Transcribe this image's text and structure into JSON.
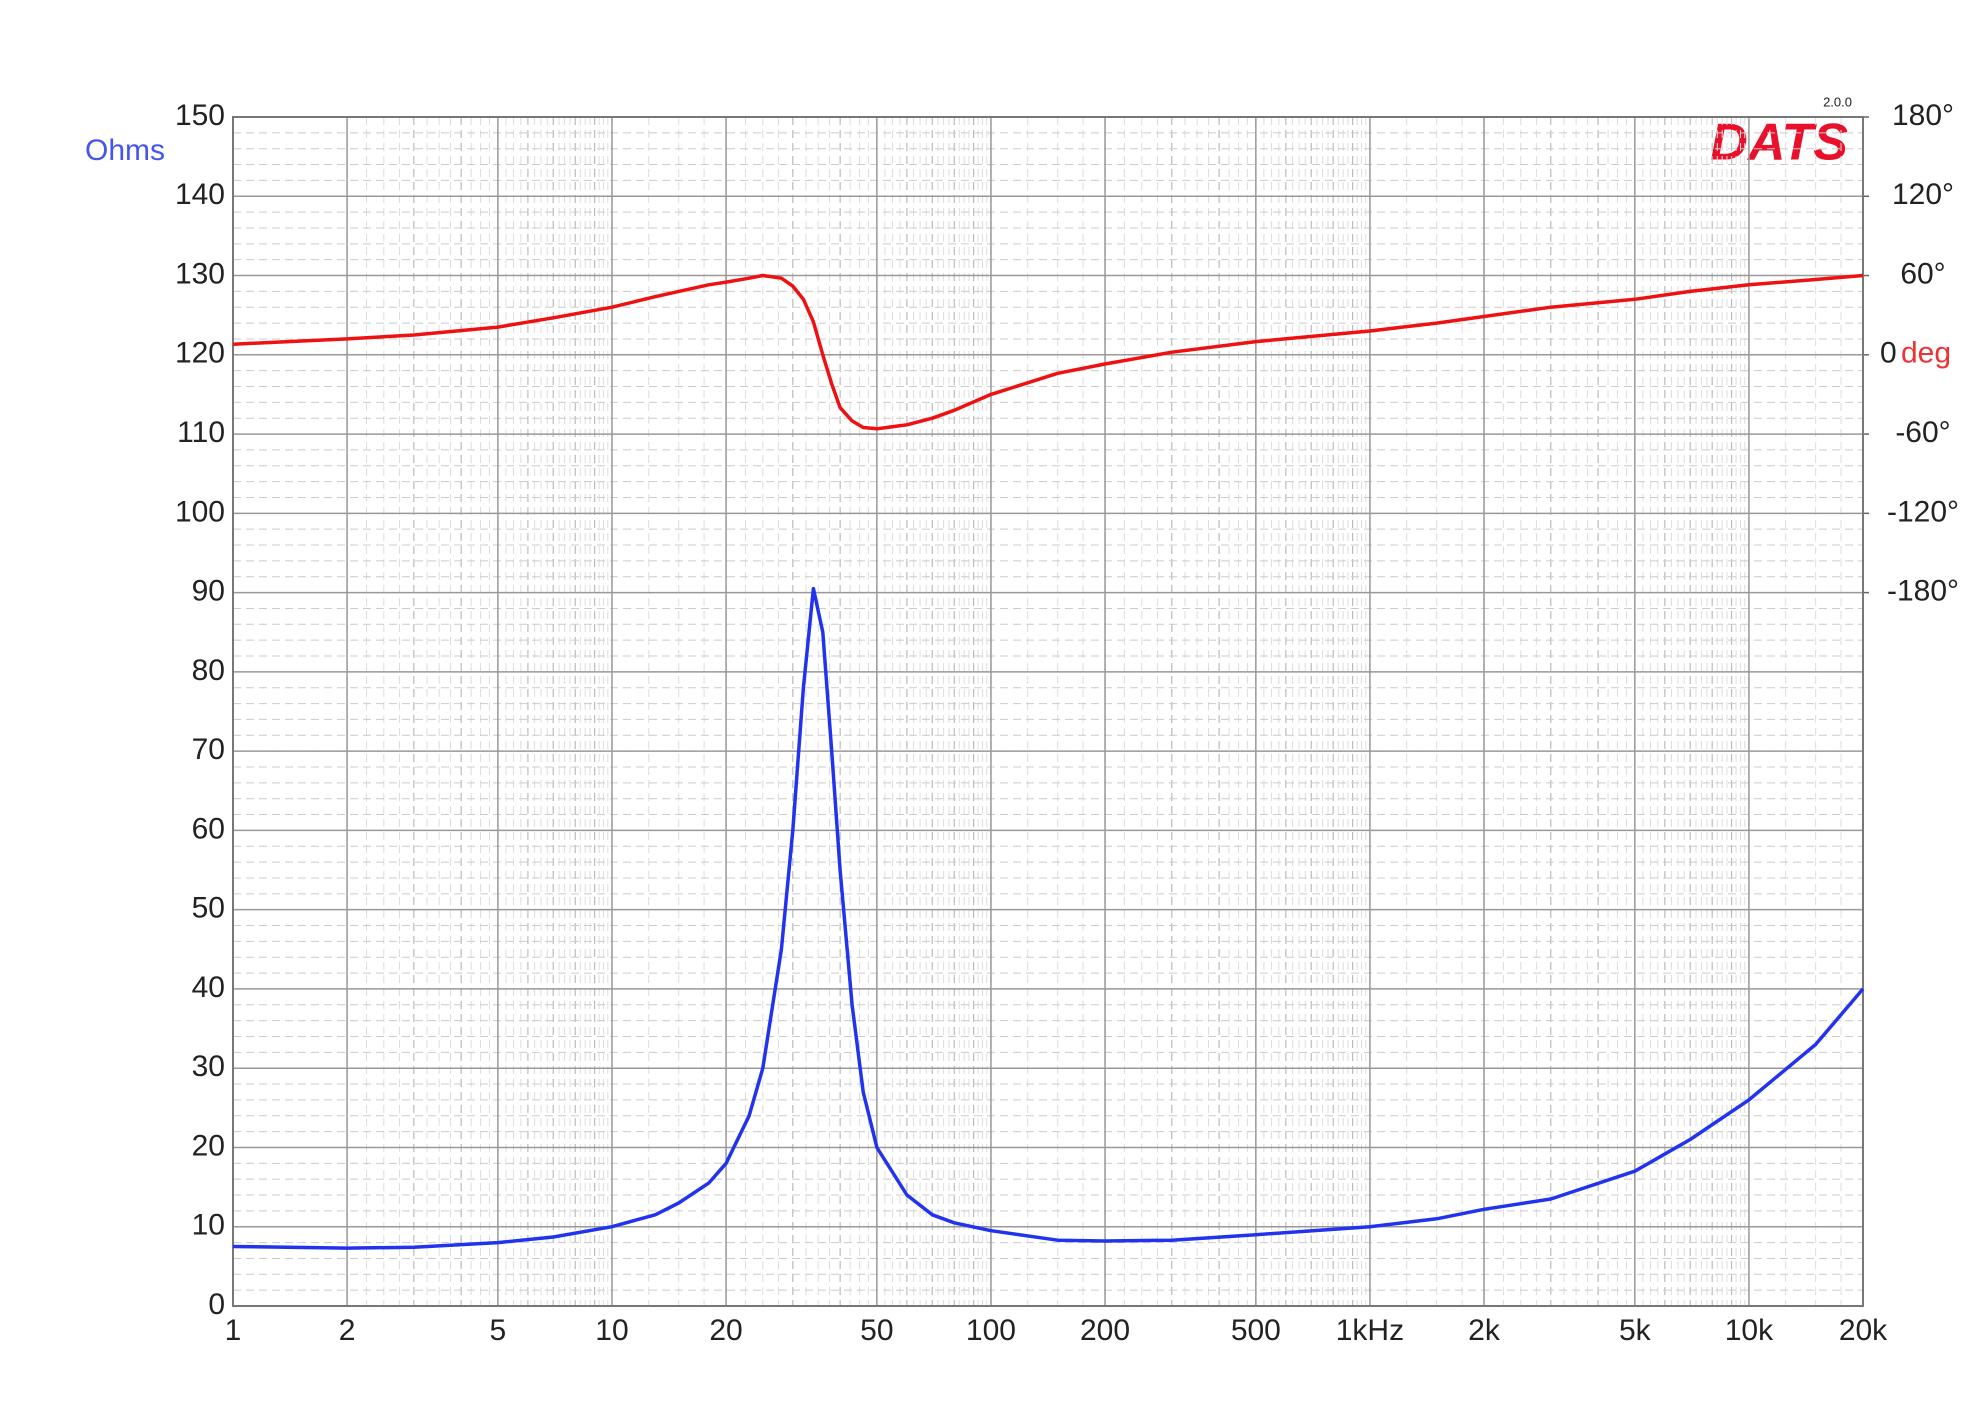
{
  "chart_data": {
    "type": "line",
    "title": "DATS",
    "version": "2.0.0",
    "y_label": "Ohms",
    "y2_label": "deg",
    "x_scale": "log",
    "grid": true,
    "x": [
      1,
      2,
      3,
      5,
      7,
      10,
      13,
      15,
      18,
      20,
      23,
      25,
      28,
      30,
      32,
      34,
      36,
      38,
      40,
      43,
      46,
      50,
      60,
      70,
      80,
      100,
      150,
      200,
      300,
      500,
      1000,
      1500,
      2000,
      3000,
      5000,
      7000,
      10000,
      15000,
      20000
    ],
    "series": [
      {
        "name": "Impedance",
        "color": "#2233ee",
        "axis": "y",
        "values": [
          7.5,
          7.3,
          7.4,
          8,
          8.7,
          10,
          11.5,
          13,
          15.5,
          18,
          24,
          30,
          45,
          60,
          78,
          90.5,
          85,
          70,
          55,
          38,
          27,
          20,
          14,
          11.5,
          10.5,
          9.5,
          8.3,
          8.2,
          8.3,
          9,
          10,
          11,
          12.2,
          13.5,
          17,
          21,
          26,
          33,
          40
        ]
      },
      {
        "name": "Phase",
        "color": "#ee1111",
        "axis": "y2",
        "values": [
          8,
          12,
          15,
          21,
          28,
          36,
          44,
          48,
          53,
          55,
          58,
          60,
          58,
          52,
          42,
          25,
          0,
          -22,
          -40,
          -50,
          -55,
          -56,
          -53,
          -48,
          -42,
          -30,
          -14,
          -7,
          2,
          10,
          18,
          24,
          29,
          36,
          42,
          48,
          53,
          57,
          60
        ]
      }
    ],
    "xlim": [
      1,
      20000
    ],
    "xticks": [
      1,
      2,
      5,
      10,
      20,
      50,
      100,
      200,
      500,
      {
        "value": 1000,
        "label": "1kHz"
      },
      {
        "value": 2000,
        "label": "2k"
      },
      {
        "value": 5000,
        "label": "5k"
      },
      {
        "value": 10000,
        "label": "10k"
      },
      {
        "value": 20000,
        "label": "20k"
      }
    ],
    "ylim": [
      0,
      150
    ],
    "yticks": [
      0,
      10,
      20,
      30,
      40,
      50,
      60,
      70,
      80,
      90,
      100,
      110,
      120,
      130,
      140,
      150
    ],
    "y2lim": [
      -720,
      180
    ],
    "y2ticks": [
      {
        "value": -180,
        "label": "-180°"
      },
      {
        "value": -120,
        "label": "-120°"
      },
      {
        "value": -60,
        "label": "-60°"
      },
      0,
      {
        "value": 60,
        "label": "60°"
      },
      {
        "value": 120,
        "label": "120°"
      },
      {
        "value": 180,
        "label": "180°"
      }
    ]
  }
}
